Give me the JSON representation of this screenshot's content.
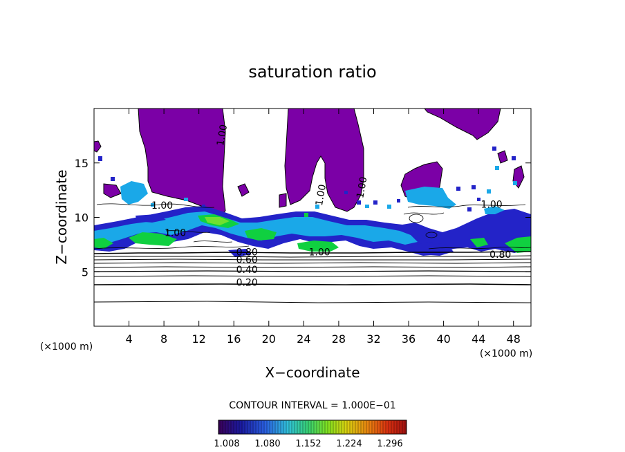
{
  "chart_data": {
    "type": "contour",
    "title": "saturation ratio",
    "xlabel": "X−coordinate",
    "ylabel": "Z−coordinate",
    "x_unit_left": "(×1000 m)",
    "x_unit_right": "(×1000 m)",
    "xlim": [
      0,
      50
    ],
    "ylim": [
      0,
      20
    ],
    "x_ticks": [
      4,
      8,
      12,
      16,
      20,
      24,
      28,
      32,
      36,
      40,
      44,
      48
    ],
    "y_ticks": [
      5,
      10,
      15
    ],
    "contour_interval_text": "CONTOUR INTERVAL = 1.000E−01",
    "contour_levels": [
      0.1,
      0.2,
      0.3,
      0.4,
      0.5,
      0.6,
      0.7,
      0.8,
      0.9,
      1.0
    ],
    "contour_labels": [
      {
        "text": "0.20",
        "x": 17.5,
        "y": 3.7
      },
      {
        "text": "0.40",
        "x": 17.5,
        "y": 4.9
      },
      {
        "text": "0.60",
        "x": 17.5,
        "y": 5.8
      },
      {
        "text": "0.80",
        "x": 17.5,
        "y": 6.5
      },
      {
        "text": "0.80",
        "x": 46.5,
        "y": 6.3
      },
      {
        "text": "1.00",
        "x": 9.3,
        "y": 8.3
      },
      {
        "text": "1.00",
        "x": 25.8,
        "y": 6.5
      },
      {
        "text": "1.00",
        "x": 31.0,
        "y": 12.7
      },
      {
        "text": "1.00",
        "x": 26.3,
        "y": 12.0
      },
      {
        "text": "1.00",
        "x": 15.0,
        "y": 17.5
      },
      {
        "text": "1.00",
        "x": 7.8,
        "y": 10.8
      },
      {
        "text": "1.00",
        "x": 45.5,
        "y": 10.9
      }
    ],
    "colorbar": {
      "ticks": [
        "1.008",
        "1.080",
        "1.152",
        "1.224",
        "1.296"
      ],
      "colors": [
        "#3a0058",
        "#1a1aa0",
        "#2a60e0",
        "#30c0d8",
        "#38d070",
        "#80e020",
        "#d8d010",
        "#e88010",
        "#d83010",
        "#a01010"
      ]
    },
    "region_colors": {
      "supersaturated_low": "#7b00a6",
      "blue": "#2323c8",
      "cyan": "#1aa8e8",
      "green": "#10d040",
      "light_green": "#70e030"
    }
  }
}
